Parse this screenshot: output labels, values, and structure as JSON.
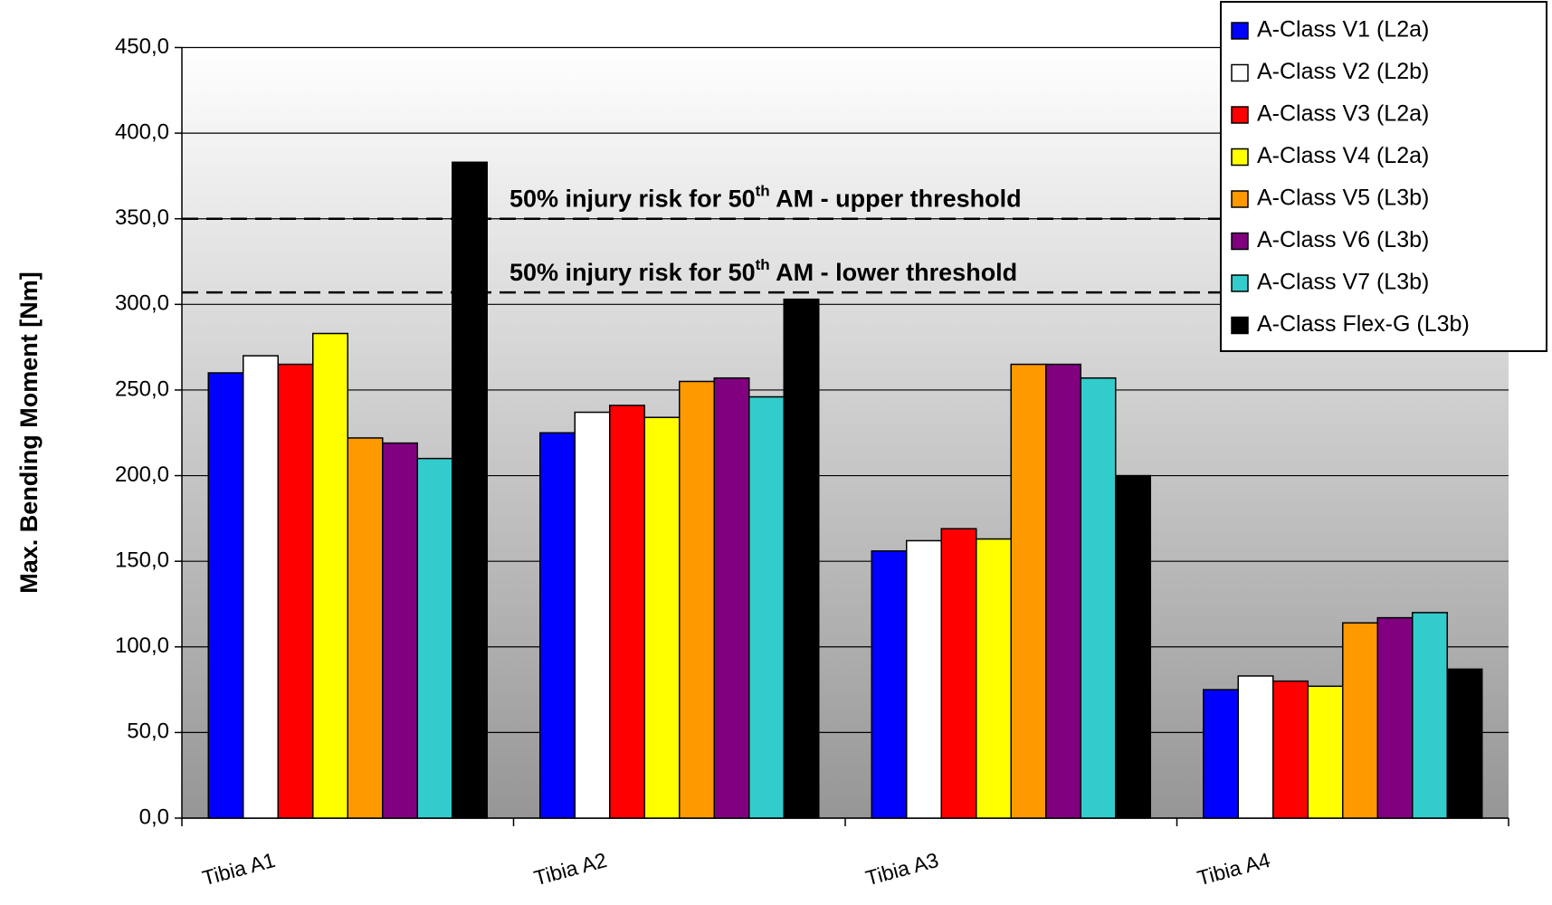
{
  "chart_data": {
    "type": "bar",
    "y_axis_label": "Max. Bending Moment [Nm]",
    "categories": [
      "Tibia A1",
      "Tibia A2",
      "Tibia A3",
      "Tibia A4"
    ],
    "series": [
      {
        "name": "A-Class V1 (L2a)",
        "color": "#0000ff",
        "values": [
          260,
          225,
          156,
          75
        ]
      },
      {
        "name": "A-Class V2 (L2b)",
        "color": "#ffffff",
        "values": [
          270,
          237,
          162,
          83
        ]
      },
      {
        "name": "A-Class V3 (L2a)",
        "color": "#ff0000",
        "values": [
          265,
          241,
          169,
          80
        ]
      },
      {
        "name": "A-Class V4 (L2a)",
        "color": "#ffff00",
        "values": [
          283,
          234,
          163,
          77
        ]
      },
      {
        "name": "A-Class V5 (L3b)",
        "color": "#ff9900",
        "values": [
          222,
          255,
          265,
          114
        ]
      },
      {
        "name": "A-Class V6 (L3b)",
        "color": "#800080",
        "values": [
          219,
          257,
          265,
          117
        ]
      },
      {
        "name": "A-Class V7 (L3b)",
        "color": "#33cccc",
        "values": [
          210,
          246,
          257,
          120
        ]
      },
      {
        "name": "A-Class Flex-G (L3b)",
        "color": "#000000",
        "values": [
          383,
          303,
          200,
          87
        ]
      }
    ],
    "annotations": [
      {
        "parts": [
          "50% injury risk for 50",
          "th",
          " AM - upper threshold"
        ],
        "value": 350
      },
      {
        "parts": [
          "50% injury risk for 50",
          "th",
          " AM - lower threshold"
        ],
        "value": 307
      }
    ],
    "ylim": [
      0,
      450
    ],
    "yticks": [
      {
        "value": 0,
        "label": "0,0"
      },
      {
        "value": 50,
        "label": "50,0"
      },
      {
        "value": 100,
        "label": "100,0"
      },
      {
        "value": 150,
        "label": "150,0"
      },
      {
        "value": 200,
        "label": "200,0"
      },
      {
        "value": 250,
        "label": "250,0"
      },
      {
        "value": 300,
        "label": "300,0"
      },
      {
        "value": 350,
        "label": "350,0"
      },
      {
        "value": 400,
        "label": "400,0"
      },
      {
        "value": 450,
        "label": "450,0"
      }
    ],
    "grid": true,
    "legend": "top-right"
  }
}
